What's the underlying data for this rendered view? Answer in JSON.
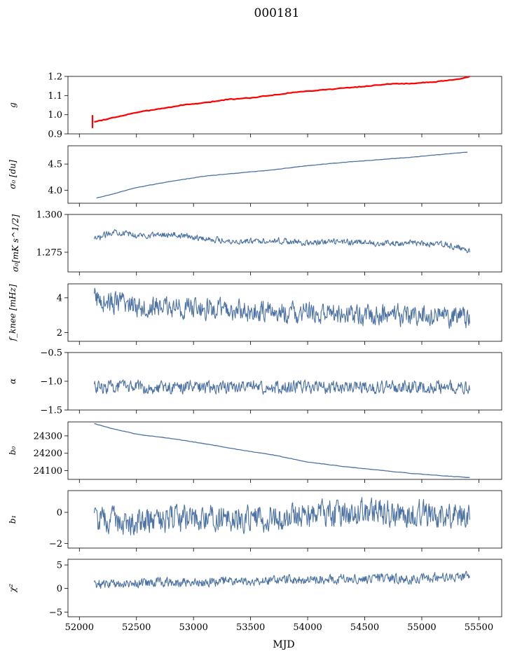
{
  "figure": {
    "title": "000181",
    "xlabel": "MJD",
    "xlim": [
      51900,
      55700
    ],
    "xticks": [
      52000,
      52500,
      53000,
      53500,
      54000,
      54500,
      55000,
      55500
    ]
  },
  "chart_data": [
    {
      "type": "line",
      "name": "gain",
      "ylabel": "g",
      "ylim": [
        0.9,
        1.2
      ],
      "yticks": [
        0.9,
        1.0,
        1.1,
        1.2
      ],
      "x_range": [
        52130,
        55420
      ],
      "colors": {
        "line": "#4c72a4",
        "overlay": "#ff0000"
      },
      "series": [
        {
          "name": "",
          "x": [
            52130,
            52300,
            52500,
            52700,
            52900,
            53100,
            53300,
            53500,
            53700,
            53900,
            54100,
            54300,
            54500,
            54700,
            54900,
            55100,
            55300,
            55420
          ],
          "values": [
            0.963,
            0.985,
            1.012,
            1.03,
            1.05,
            1.062,
            1.08,
            1.088,
            1.103,
            1.118,
            1.128,
            1.138,
            1.148,
            1.16,
            1.163,
            1.17,
            1.183,
            1.199
          ]
        }
      ],
      "overlay_spike": {
        "x": 52115,
        "ylow": 0.93,
        "yhigh": 0.998
      }
    },
    {
      "type": "line",
      "name": "sigma0-du",
      "ylabel": "σ₀ [du]",
      "ylim": [
        3.75,
        4.85
      ],
      "yticks": [
        4.0,
        4.5
      ],
      "x_range": [
        52150,
        55400
      ],
      "colors": {
        "line": "#4c72a4"
      },
      "series": [
        {
          "name": "",
          "x": [
            52150,
            52300,
            52500,
            52800,
            53100,
            53400,
            53700,
            54000,
            54300,
            54600,
            54900,
            55200,
            55400
          ],
          "values": [
            3.85,
            3.93,
            4.05,
            4.17,
            4.27,
            4.33,
            4.39,
            4.47,
            4.53,
            4.58,
            4.63,
            4.69,
            4.73
          ]
        }
      ]
    },
    {
      "type": "line",
      "name": "sigma0-mks",
      "ylabel": "σ₀[mK s^1/2]",
      "ylim": [
        1.262,
        1.3
      ],
      "yticks": [
        1.275,
        1.3
      ],
      "x_range": [
        52130,
        55420
      ],
      "colors": {
        "line": "#4c72a4"
      },
      "series": [
        {
          "name": "",
          "x": [
            52130,
            52300,
            52500,
            52800,
            53100,
            53400,
            53700,
            54000,
            54300,
            54600,
            54900,
            55200,
            55420
          ],
          "values": [
            1.283,
            1.289,
            1.286,
            1.287,
            1.284,
            1.282,
            1.283,
            1.281,
            1.282,
            1.281,
            1.281,
            1.28,
            1.276
          ]
        }
      ],
      "noise_amplitude": 0.0035
    },
    {
      "type": "line",
      "name": "fknee",
      "ylabel": "f_knee [mHz]",
      "ylim": [
        1.5,
        4.8
      ],
      "yticks": [
        2,
        4
      ],
      "x_range": [
        52130,
        55420
      ],
      "colors": {
        "line": "#4c72a4"
      },
      "series": [
        {
          "name": "",
          "x": [
            52130,
            52300,
            52600,
            53000,
            53500,
            54000,
            54500,
            55000,
            55420
          ],
          "values": [
            4.0,
            3.7,
            3.5,
            3.4,
            3.2,
            3.1,
            3.0,
            3.0,
            2.9
          ]
        }
      ],
      "noise_amplitude": 1.1
    },
    {
      "type": "line",
      "name": "alpha",
      "ylabel": "α",
      "ylim": [
        -1.5,
        -0.5
      ],
      "yticks": [
        -1.5,
        -1.0,
        -0.5
      ],
      "x_range": [
        52130,
        55420
      ],
      "colors": {
        "line": "#4c72a4"
      },
      "series": [
        {
          "name": "",
          "x": [
            52130,
            53000,
            54000,
            55000,
            55420
          ],
          "values": [
            -1.1,
            -1.1,
            -1.1,
            -1.1,
            -1.1
          ]
        }
      ],
      "noise_amplitude": 0.2
    },
    {
      "type": "line",
      "name": "b0",
      "ylabel": "b₀",
      "ylim": [
        24050,
        24380
      ],
      "yticks": [
        24100,
        24200,
        24300
      ],
      "x_range": [
        52130,
        55420
      ],
      "colors": {
        "line": "#4c72a4"
      },
      "series": [
        {
          "name": "",
          "x": [
            52130,
            52300,
            52500,
            52800,
            53100,
            53400,
            53700,
            54000,
            54300,
            54600,
            54900,
            55200,
            55420
          ],
          "values": [
            24370,
            24340,
            24310,
            24285,
            24255,
            24220,
            24190,
            24150,
            24125,
            24105,
            24085,
            24070,
            24060
          ]
        }
      ]
    },
    {
      "type": "line",
      "name": "b1",
      "ylabel": "b₁",
      "ylim": [
        -2.3,
        1.4
      ],
      "yticks": [
        -2,
        0
      ],
      "x_range": [
        52130,
        55420
      ],
      "colors": {
        "line": "#4c72a4"
      },
      "series": [
        {
          "name": "",
          "x": [
            52130,
            52500,
            53000,
            53500,
            54000,
            54500,
            55000,
            55420
          ],
          "values": [
            -0.5,
            -0.6,
            -0.4,
            -0.4,
            -0.2,
            0.0,
            -0.1,
            -0.3
          ]
        }
      ],
      "noise_amplitude": 1.5
    },
    {
      "type": "line",
      "name": "chi2",
      "ylabel": "χ²",
      "ylim": [
        -6,
        6.2
      ],
      "yticks": [
        -5,
        0,
        5
      ],
      "x_range": [
        52130,
        55420
      ],
      "colors": {
        "line": "#4c72a4"
      },
      "series": [
        {
          "name": "",
          "x": [
            52130,
            52500,
            53000,
            53500,
            54000,
            54500,
            55000,
            55420
          ],
          "values": [
            0.8,
            1.2,
            1.3,
            1.6,
            1.9,
            2.1,
            2.1,
            2.6
          ]
        }
      ],
      "noise_amplitude": 1.8
    }
  ]
}
